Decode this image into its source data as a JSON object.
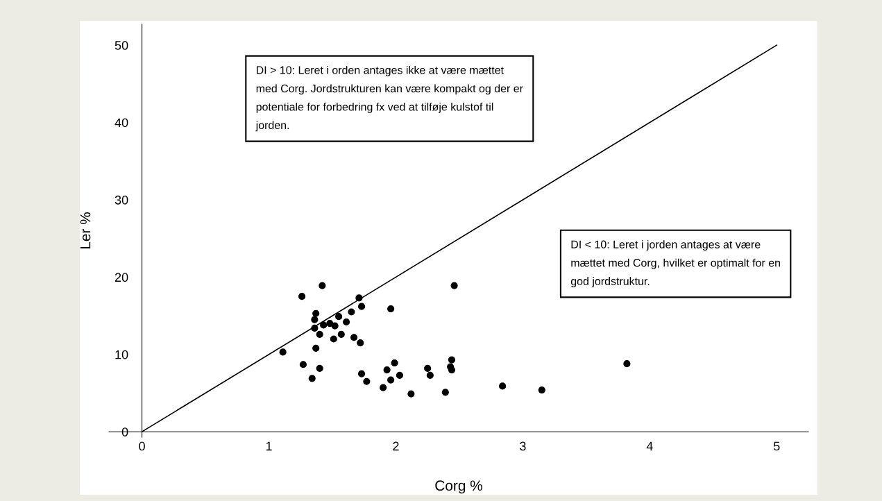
{
  "chart_data": {
    "type": "scatter",
    "xlabel": "Corg %",
    "ylabel": "Ler %",
    "xlim": [
      -0.26,
      5.25
    ],
    "ylim": [
      -0.7,
      52.7
    ],
    "xticks": [
      0,
      1,
      2,
      3,
      4,
      5
    ],
    "yticks": [
      0,
      10,
      20,
      30,
      40,
      50
    ],
    "grid": false,
    "legend": false,
    "annotations": [
      "DI > 10: Leret i orden antages ikke at være mættet\nmed Corg. Jordstrukturen kan være kompakt og der er\npotentiale for forbedring fx ved at tilføje kulstof til\njorden.",
      "DI < 10: Leret i jorden antages at være\nmættet med Corg, hvilket er optimalt for en\ngod jordstruktur."
    ],
    "series": [
      {
        "color": "#000000",
        "marker": "circle",
        "x": [
          1.42,
          1.26,
          1.71,
          1.73,
          1.96,
          1.37,
          1.36,
          1.55,
          1.65,
          1.61,
          1.43,
          1.48,
          1.52,
          1.36,
          1.4,
          1.57,
          1.51,
          1.67,
          1.72,
          1.11,
          1.37,
          1.27,
          1.4,
          1.34,
          1.73,
          1.77,
          1.99,
          1.93,
          2.03,
          1.96,
          1.9,
          2.12,
          2.25,
          2.27,
          2.46,
          2.44,
          2.43,
          2.44,
          2.39,
          2.84,
          3.15,
          3.82
        ],
        "values": [
          18.9,
          17.5,
          17.3,
          16.2,
          15.9,
          15.3,
          14.5,
          14.9,
          15.5,
          14.2,
          13.8,
          14.0,
          13.7,
          13.4,
          12.6,
          12.6,
          12.0,
          12.2,
          11.5,
          10.3,
          10.8,
          8.7,
          8.2,
          6.9,
          7.5,
          6.5,
          8.9,
          8.0,
          7.3,
          6.7,
          5.7,
          4.9,
          8.2,
          7.3,
          18.9,
          9.3,
          8.4,
          8.0,
          5.1,
          5.9,
          5.4,
          8.8
        ]
      },
      {
        "type": "line",
        "color": "#000000",
        "line_style": "solid",
        "x": [
          0,
          5
        ],
        "values": [
          0,
          50
        ]
      }
    ]
  }
}
